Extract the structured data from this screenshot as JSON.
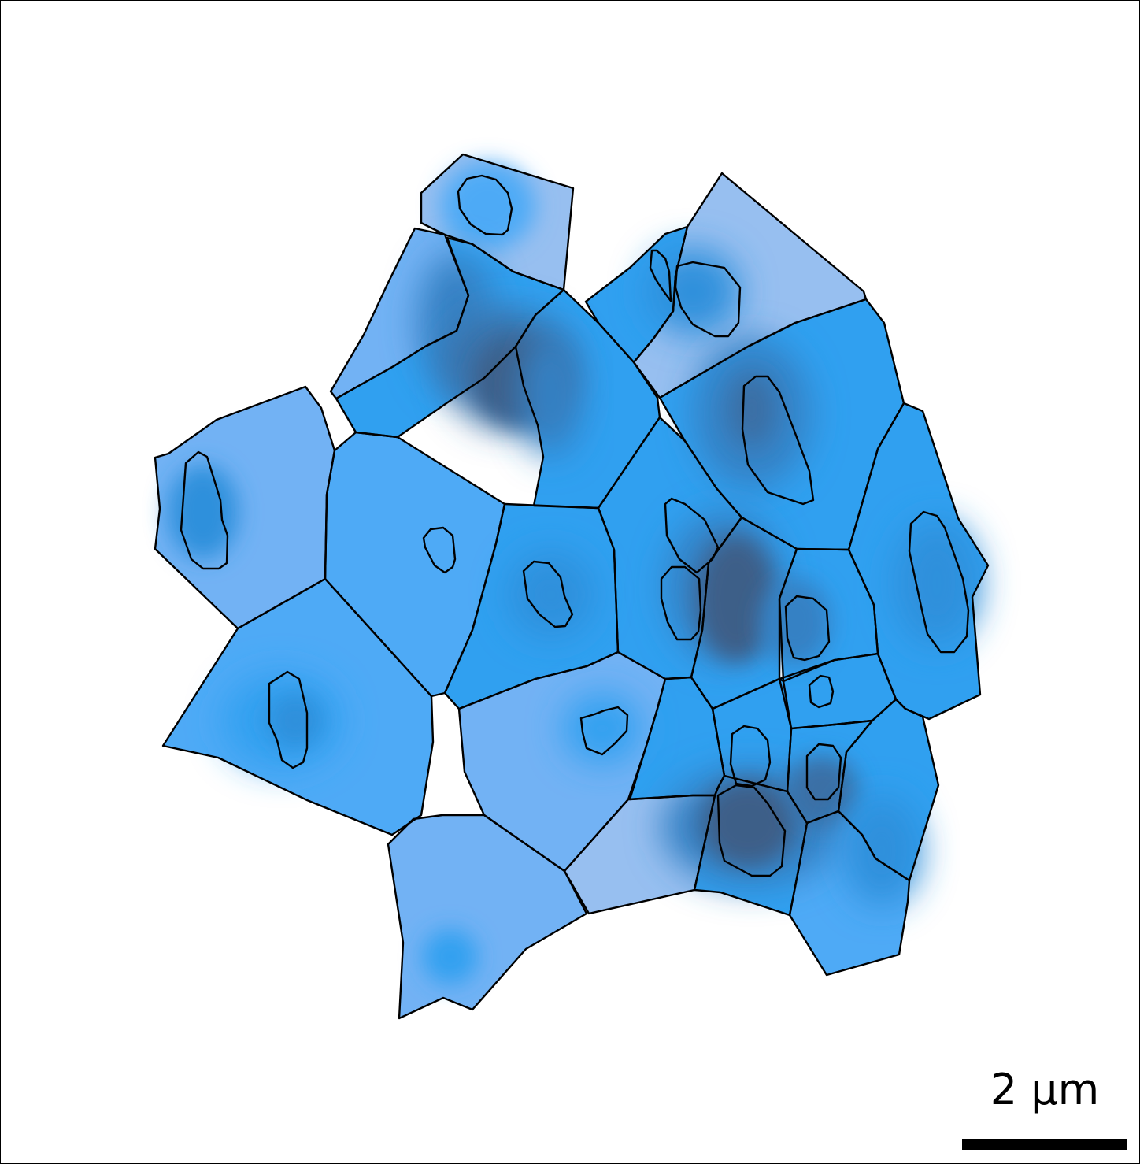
{
  "scale_bar": {
    "label": "2 µm"
  },
  "colors": {
    "level_1": "#97bff0",
    "level_2": "#72b2f4",
    "level_3": "#4eaaf6",
    "level_4": "#30a0f0",
    "level_5": "#2e90dc",
    "level_6": "#3481c4",
    "level_7": "#3a6fa6",
    "level_8": "#3e5f88",
    "outline": "#000000"
  }
}
